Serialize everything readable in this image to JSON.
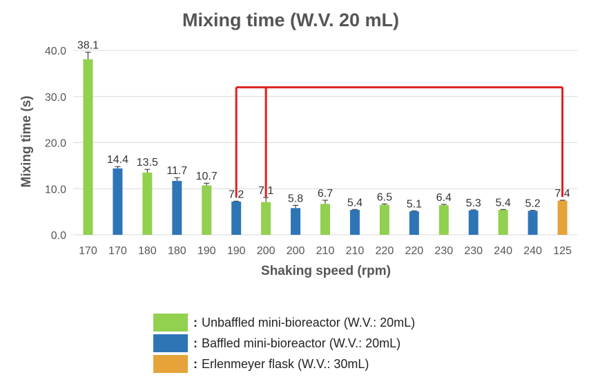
{
  "chart_data": {
    "type": "bar",
    "title": "Mixing time (W.V. 20 mL)",
    "xlabel": "Shaking speed (rpm)",
    "ylabel": "Mixing time (s)",
    "ylim": [
      0,
      40
    ],
    "yticks": [
      "0.0",
      "10.0",
      "20.0",
      "30.0",
      "40.0"
    ],
    "grid": true,
    "categories": [
      "170",
      "170",
      "180",
      "180",
      "190",
      "190",
      "200",
      "200",
      "210",
      "210",
      "220",
      "220",
      "230",
      "230",
      "240",
      "240",
      "125"
    ],
    "values": [
      38.1,
      14.4,
      13.5,
      11.7,
      10.7,
      7.2,
      7.1,
      5.8,
      6.7,
      5.4,
      6.5,
      5.1,
      6.4,
      5.3,
      5.4,
      5.2,
      7.4
    ],
    "value_labels": [
      "38.1",
      "14.4",
      "13.5",
      "11.7",
      "10.7",
      "7.2",
      "7.1",
      "5.8",
      "6.7",
      "5.4",
      "6.5",
      "5.1",
      "6.4",
      "5.3",
      "5.4",
      "5.2",
      "7.4"
    ],
    "errors": [
      1.5,
      0.4,
      0.7,
      0.7,
      0.5,
      0.1,
      1.0,
      0.6,
      0.8,
      0.1,
      0.2,
      0.1,
      0.2,
      0.1,
      0.1,
      0.1,
      0.1
    ],
    "groups": [
      "unbaffled",
      "baffled",
      "unbaffled",
      "baffled",
      "unbaffled",
      "baffled",
      "unbaffled",
      "baffled",
      "unbaffled",
      "baffled",
      "unbaffled",
      "baffled",
      "unbaffled",
      "baffled",
      "unbaffled",
      "baffled",
      "erlenmeyer"
    ],
    "colors": {
      "unbaffled": "#92d050",
      "baffled": "#2e75b6",
      "erlenmeyer": "#e5a33a",
      "bracket": "#e02020",
      "grid": "#d9d9d9"
    },
    "bracket": {
      "y": 32,
      "from_index": [
        5,
        6
      ],
      "to_index": 16
    },
    "legend": [
      {
        "group": "unbaffled",
        "prefix": ":",
        "label": "Unbaffled mini-bioreactor (W.V.: 20mL)"
      },
      {
        "group": "baffled",
        "prefix": ":",
        "label": "Baffled mini-bioreactor (W.V.: 20mL)"
      },
      {
        "group": "erlenmeyer",
        "prefix": ":",
        "label": "Erlenmeyer flask (W.V.: 30mL)"
      }
    ],
    "legend_placement": "bottom"
  }
}
